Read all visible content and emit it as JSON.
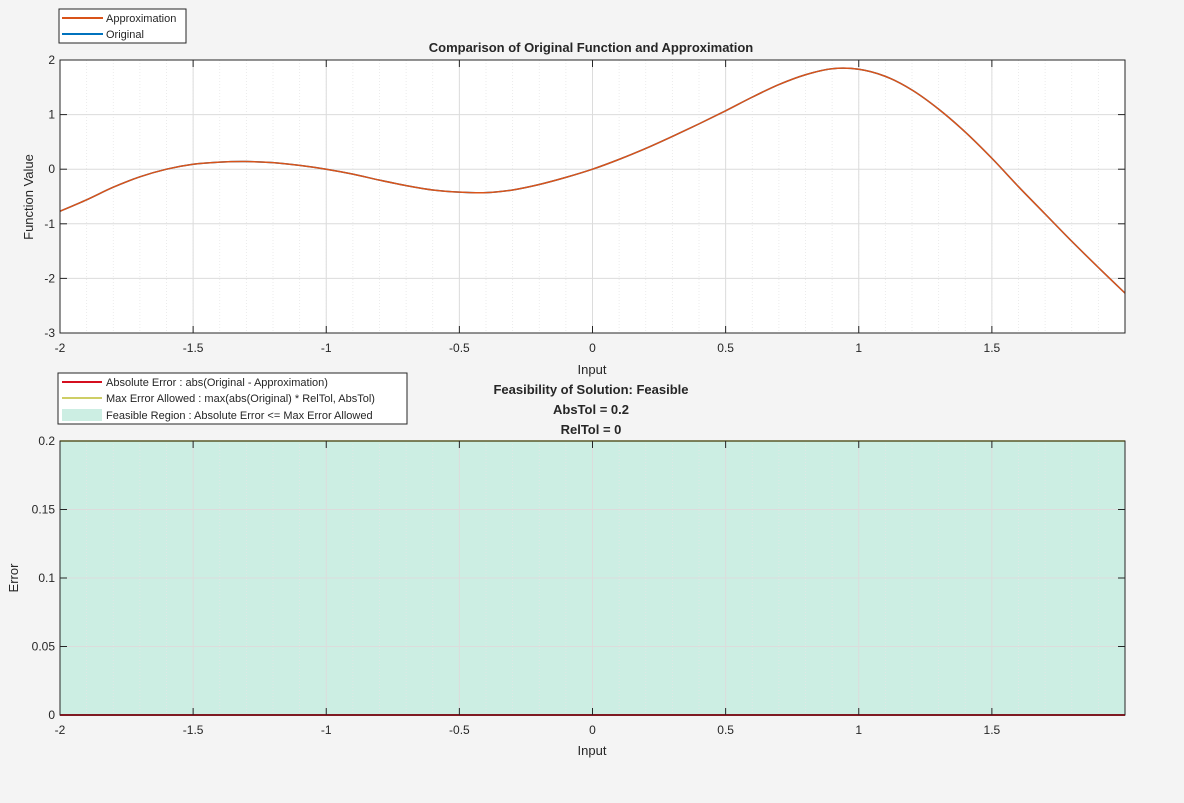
{
  "colors": {
    "background": "#f4f4f4",
    "approximation": "#d95319",
    "original": "#0072bd",
    "absolute_error": "#d50f1f",
    "max_error": "#bdbd32",
    "feasible_region": "#cceee3",
    "grid": "#dcdcdc"
  },
  "chart_data": [
    {
      "type": "line",
      "title": "Comparison of Original Function and Approximation",
      "xlabel": "Input",
      "ylabel": "Function Value",
      "xlim": [
        -2,
        2
      ],
      "ylim": [
        -3,
        2
      ],
      "xticks": [
        -2,
        -1.5,
        -1,
        -0.5,
        0,
        0.5,
        1,
        1.5
      ],
      "xtick_labels": [
        "-2",
        "-1.5",
        "-1",
        "-0.5",
        "0",
        "0.5",
        "1",
        "1.5"
      ],
      "yticks": [
        2,
        1,
        0,
        -1,
        -2,
        -3
      ],
      "ytick_labels": [
        "2",
        "1",
        "0",
        "-1",
        "-2",
        "-3"
      ],
      "grid": true,
      "minor_grid": true,
      "legend_position": "top-left outside",
      "legend": [
        "Approximation",
        "Original"
      ],
      "x": [
        -2,
        -1.9,
        -1.8,
        -1.7,
        -1.6,
        -1.5,
        -1.4,
        -1.3,
        -1.2,
        -1.1,
        -1,
        -0.9,
        -0.8,
        -0.7,
        -0.6,
        -0.5,
        -0.4,
        -0.3,
        -0.2,
        -0.1,
        0,
        0.1,
        0.2,
        0.3,
        0.4,
        0.5,
        0.6,
        0.7,
        0.8,
        0.9,
        1,
        1.1,
        1.2,
        1.3,
        1.4,
        1.5,
        1.6,
        1.7,
        1.8,
        1.9,
        2
      ],
      "series": [
        {
          "name": "Approximation",
          "values": [
            -0.77,
            -0.56,
            -0.33,
            -0.14,
            0.0,
            0.09,
            0.13,
            0.14,
            0.12,
            0.07,
            0.0,
            -0.09,
            -0.2,
            -0.3,
            -0.38,
            -0.42,
            -0.43,
            -0.38,
            -0.28,
            -0.15,
            0.0,
            0.18,
            0.38,
            0.6,
            0.83,
            1.07,
            1.32,
            1.55,
            1.73,
            1.84,
            1.83,
            1.7,
            1.45,
            1.1,
            0.68,
            0.2,
            -0.32,
            -0.82,
            -1.32,
            -1.8,
            -2.27
          ]
        },
        {
          "name": "Original",
          "values": [
            -0.77,
            -0.56,
            -0.33,
            -0.14,
            0.0,
            0.09,
            0.13,
            0.14,
            0.12,
            0.07,
            0.0,
            -0.09,
            -0.2,
            -0.3,
            -0.38,
            -0.42,
            -0.43,
            -0.38,
            -0.28,
            -0.15,
            0.0,
            0.18,
            0.38,
            0.6,
            0.83,
            1.07,
            1.32,
            1.55,
            1.73,
            1.84,
            1.83,
            1.7,
            1.45,
            1.1,
            0.68,
            0.2,
            -0.32,
            -0.82,
            -1.32,
            -1.8,
            -2.27
          ]
        }
      ]
    },
    {
      "type": "area",
      "title": "Feasibility of Solution: Feasible",
      "subtitle_lines": [
        "AbsTol = 0.2",
        "RelTol = 0"
      ],
      "xlabel": "Input",
      "ylabel": "Error",
      "xlim": [
        -2,
        2
      ],
      "ylim": [
        0,
        0.2
      ],
      "xticks": [
        -2,
        -1.5,
        -1,
        -0.5,
        0,
        0.5,
        1,
        1.5
      ],
      "xtick_labels": [
        "-2",
        "-1.5",
        "-1",
        "-0.5",
        "0",
        "0.5",
        "1",
        "1.5"
      ],
      "yticks": [
        0.2,
        0.15,
        0.1,
        0.05,
        0
      ],
      "ytick_labels": [
        "0.2",
        "0.15",
        "0.1",
        "0.05",
        "0"
      ],
      "grid": true,
      "minor_grid": true,
      "legend_position": "top-left outside",
      "legend": [
        "Absolute Error : abs(Original - Approximation)",
        "Max Error Allowed : max(abs(Original) * RelTol, AbsTol)",
        "Feasible Region : Absolute Error <= Max Error Allowed"
      ],
      "x": [
        -2,
        2
      ],
      "series": [
        {
          "name": "Absolute Error : abs(Original - Approximation)",
          "values": [
            0,
            0
          ]
        },
        {
          "name": "Max Error Allowed : max(abs(Original) * RelTol, AbsTol)",
          "values": [
            0.2,
            0.2
          ]
        },
        {
          "name": "Feasible Region : Absolute Error <= Max Error Allowed",
          "values": [
            0.2,
            0.2
          ]
        }
      ]
    }
  ]
}
